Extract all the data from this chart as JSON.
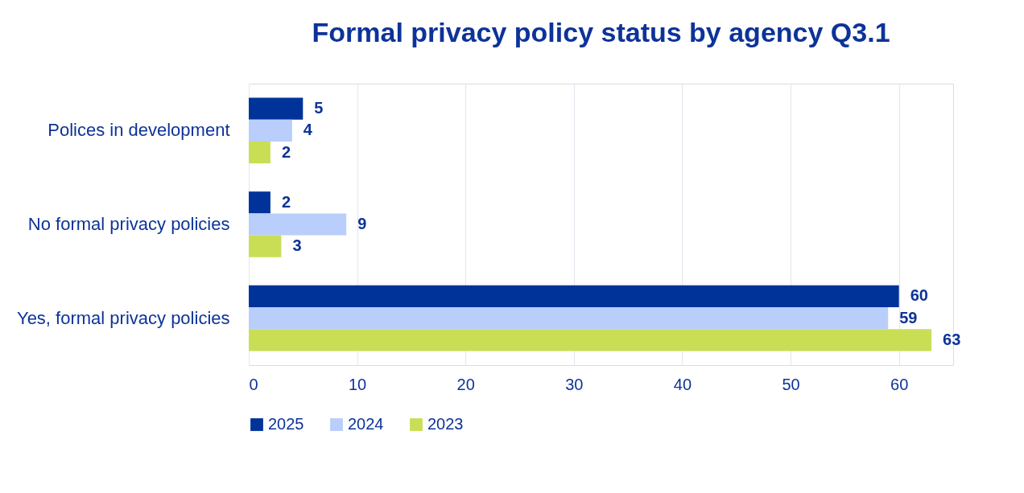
{
  "chart_data": {
    "type": "bar",
    "orientation": "horizontal",
    "title": "Formal privacy policy status by agency Q3.1",
    "categories": [
      "Polices in development",
      "No formal privacy policies",
      "Yes, formal privacy policies"
    ],
    "series": [
      {
        "name": "2025",
        "color": "#003399",
        "values": [
          5,
          2,
          60
        ]
      },
      {
        "name": "2024",
        "color": "#b9cefa",
        "values": [
          4,
          9,
          59
        ]
      },
      {
        "name": "2023",
        "color": "#c9de55",
        "values": [
          2,
          3,
          63
        ]
      }
    ],
    "xlim": [
      0,
      65
    ],
    "xticks": [
      0,
      10,
      20,
      30,
      40,
      50,
      60
    ],
    "grid": "x",
    "legend": "bottom",
    "data_labels": true
  }
}
